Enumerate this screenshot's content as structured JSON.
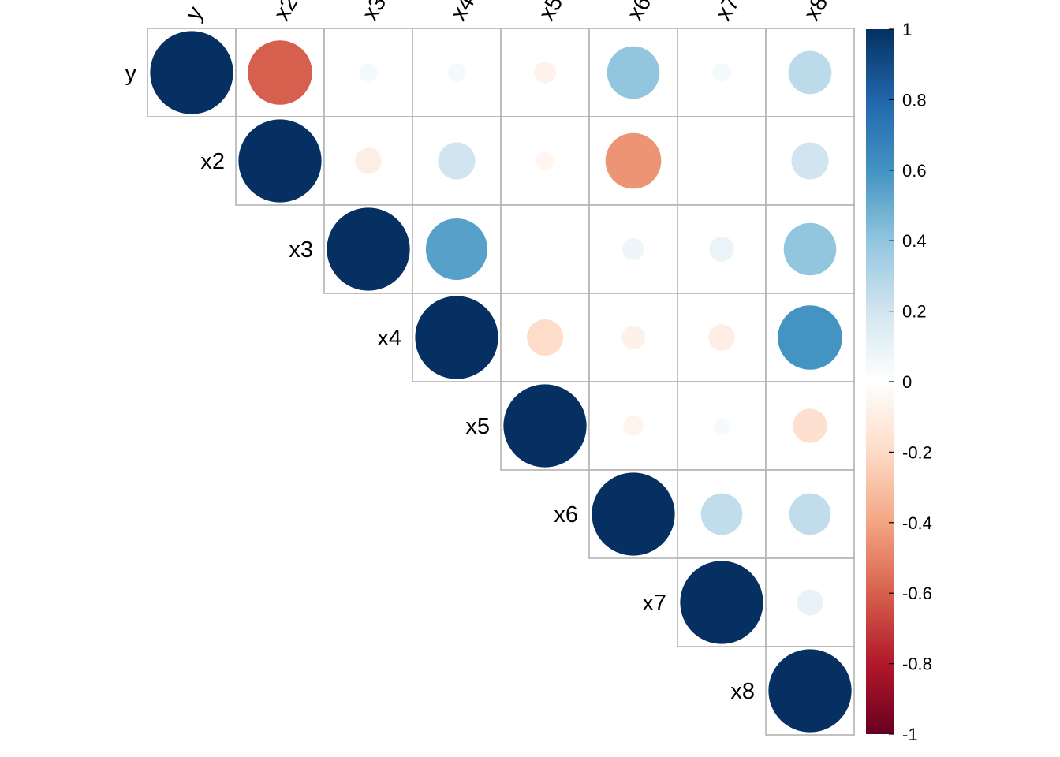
{
  "chart_data": {
    "type": "heatmap",
    "subtype": "correlation-matrix-circles",
    "title": "",
    "layout": "upper-triangular",
    "variables": [
      "y",
      "x2",
      "x3",
      "x4",
      "x5",
      "x6",
      "x7",
      "x8"
    ],
    "matrix": [
      [
        1.0,
        -0.6,
        0.05,
        0.05,
        -0.07,
        0.4,
        0.05,
        0.27
      ],
      [
        -0.6,
        1.0,
        -0.1,
        0.2,
        -0.05,
        -0.45,
        0.0,
        0.2
      ],
      [
        0.05,
        -0.1,
        1.0,
        0.55,
        0.01,
        0.07,
        0.09,
        0.4
      ],
      [
        0.05,
        0.2,
        0.55,
        1.0,
        -0.19,
        -0.08,
        -0.1,
        0.6
      ],
      [
        -0.07,
        -0.05,
        0.01,
        -0.19,
        1.0,
        -0.06,
        0.04,
        -0.17
      ],
      [
        0.4,
        -0.45,
        0.07,
        -0.08,
        -0.06,
        1.0,
        0.25,
        0.25
      ],
      [
        0.05,
        0.0,
        0.09,
        -0.1,
        0.04,
        0.25,
        1.0,
        0.1
      ],
      [
        0.27,
        0.2,
        0.4,
        0.6,
        -0.17,
        0.25,
        0.1,
        1.0
      ]
    ],
    "colorbar": {
      "range": [
        -1,
        1
      ],
      "ticks": [
        "-1",
        "-0.8",
        "-0.6",
        "-0.4",
        "-0.2",
        "0",
        "0.2",
        "0.4",
        "0.6",
        "0.8",
        "1"
      ],
      "placement": "right",
      "colors": [
        "#67001F",
        "#B2182B",
        "#D6604D",
        "#F4A582",
        "#FDDBC7",
        "#FFFFFF",
        "#D1E5F0",
        "#92C5DE",
        "#4393C3",
        "#2166AC",
        "#053061"
      ]
    },
    "grid": true
  }
}
